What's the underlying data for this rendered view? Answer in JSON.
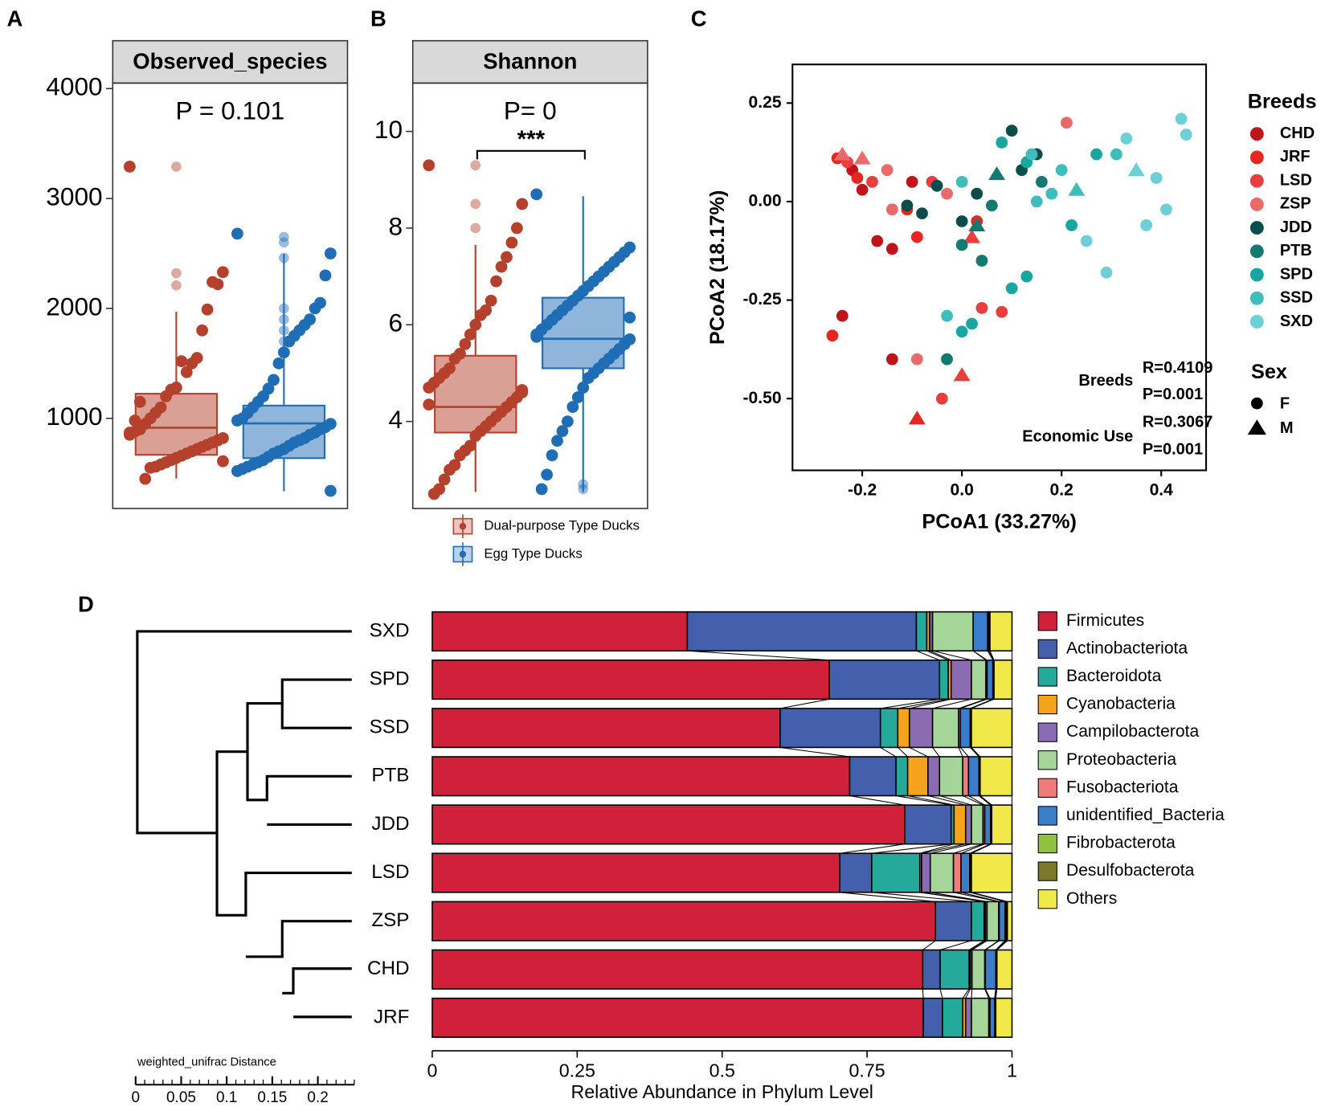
{
  "panels": [
    "A",
    "B",
    "C",
    "D"
  ],
  "chart_data": [
    {
      "type": "box",
      "title": "Observed_species",
      "annotation": "P = 0.101",
      "ylim": [
        180,
        4050
      ],
      "yticks": [
        1000,
        2000,
        3000,
        4000
      ],
      "series": [
        {
          "color": "#b5412c",
          "box": {
            "min": 453,
            "q1": 668,
            "median": 915,
            "q3": 1224,
            "max": 1971
          },
          "outliers": [
            3290,
            2320,
            2210
          ],
          "values": [
            3290,
            2330,
            2220,
            2240,
            1990,
            1800,
            1550,
            1500,
            1420,
            1520,
            1280,
            1260,
            1200,
            1100,
            1050,
            1000,
            950,
            900,
            880,
            850,
            820,
            800,
            780,
            760,
            740,
            720,
            700,
            680,
            660,
            640,
            620,
            600,
            580,
            560,
            550,
            450,
            1150,
            980,
            870,
            610
          ]
        },
        {
          "color": "#1f6db5",
          "box": {
            "min": 337,
            "q1": 638,
            "median": 954,
            "q3": 1116,
            "max": 2496
          },
          "outliers": [
            2650,
            2600,
            2460,
            2000,
            1900,
            1800,
            1700
          ],
          "values": [
            2680,
            2500,
            2300,
            2050,
            2000,
            1900,
            1850,
            1800,
            1750,
            1700,
            1600,
            1500,
            1350,
            1270,
            1200,
            1150,
            1100,
            1050,
            1000,
            980,
            950,
            920,
            900,
            870,
            850,
            820,
            800,
            780,
            750,
            720,
            700,
            680,
            650,
            620,
            600,
            580,
            560,
            540,
            520,
            340
          ]
        }
      ]
    },
    {
      "type": "box",
      "title": "Shannon",
      "annotation": "P= 0",
      "significance": "***",
      "ylim": [
        2.2,
        11.0
      ],
      "yticks": [
        4,
        6,
        8,
        10
      ],
      "series": [
        {
          "name": "Dual-purpose Type Ducks",
          "color": "#b5412c",
          "box": {
            "min": 2.54,
            "q1": 3.77,
            "median": 4.3,
            "q3": 5.36,
            "max": 7.65
          },
          "outliers": [
            9.3,
            8.5,
            8.0
          ],
          "values": [
            9.3,
            8.5,
            8.0,
            7.7,
            7.4,
            7.2,
            6.9,
            6.5,
            6.3,
            6.2,
            6.0,
            5.8,
            5.6,
            5.4,
            5.3,
            5.1,
            5.0,
            4.9,
            4.8,
            4.7,
            4.6,
            4.5,
            4.4,
            4.3,
            4.2,
            4.1,
            4.0,
            3.9,
            3.8,
            3.7,
            3.5,
            3.4,
            3.3,
            3.1,
            3.0,
            2.8,
            2.6,
            2.5,
            4.35,
            4.65
          ]
        },
        {
          "name": "Egg Type Ducks",
          "color": "#1f6db5",
          "box": {
            "min": 2.54,
            "q1": 5.1,
            "median": 5.71,
            "q3": 6.56,
            "max": 8.66
          },
          "outliers": [
            2.6,
            2.7
          ],
          "values": [
            8.7,
            7.6,
            7.5,
            7.4,
            7.3,
            7.2,
            7.1,
            7.0,
            6.9,
            6.8,
            6.7,
            6.6,
            6.5,
            6.4,
            6.3,
            6.2,
            6.1,
            6.0,
            5.9,
            5.8,
            5.7,
            5.6,
            5.5,
            5.4,
            5.3,
            5.2,
            5.1,
            5.0,
            4.9,
            4.7,
            4.5,
            4.3,
            4.0,
            3.8,
            3.6,
            3.3,
            2.9,
            2.6,
            5.75,
            6.15
          ]
        }
      ]
    },
    {
      "type": "scatter",
      "xlabel": "PCoA1 (33.27%)",
      "ylabel": "PCoA2 (18.17%)",
      "xlim": [
        -0.34,
        0.49
      ],
      "ylim": [
        -0.682,
        0.348
      ],
      "xticks": [
        -0.2,
        {
          "value": 0,
          "label": "0.0"
        },
        0.2,
        0.4
      ],
      "yticks": [
        0.25,
        {
          "value": 0,
          "label": "0.00"
        },
        -0.25,
        {
          "value": -0.5,
          "label": "-0.50"
        }
      ],
      "legend_title": "Breeds",
      "sex_title": "Sex",
      "sex_labels": [
        "F",
        "M"
      ],
      "annotations": [
        "Breeds",
        "R=0.4109",
        "P=0.001",
        "Economic Use",
        "R=0.3067",
        "P=0.001"
      ],
      "series": [
        {
          "name": "CHD",
          "color": "#c0141a",
          "x": [
            -0.22,
            -0.17,
            -0.14,
            -0.24,
            -0.14,
            -0.2,
            -0.1
          ],
          "y": [
            0.08,
            -0.1,
            -0.12,
            -0.29,
            -0.4,
            0.03,
            0.05
          ],
          "sex": [
            "F",
            "F",
            "F",
            "F",
            "F",
            "F",
            "F"
          ]
        },
        {
          "name": "JRF",
          "color": "#e8251f",
          "x": [
            -0.25,
            -0.21,
            -0.11,
            -0.09,
            -0.26,
            -0.09,
            0.03
          ],
          "y": [
            0.11,
            0.06,
            -0.02,
            -0.09,
            -0.34,
            -0.55,
            -0.05
          ],
          "sex": [
            "F",
            "F",
            "F",
            "F",
            "F",
            "M",
            "F"
          ]
        },
        {
          "name": "LSD",
          "color": "#e83e3e",
          "x": [
            -0.23,
            -0.18,
            -0.06,
            0.02,
            0.0,
            -0.04,
            0.08,
            0.04
          ],
          "y": [
            0.1,
            0.05,
            0.05,
            -0.09,
            -0.44,
            -0.5,
            -0.28,
            -0.27
          ],
          "sex": [
            "F",
            "F",
            "F",
            "M",
            "M",
            "F",
            "F",
            "F"
          ]
        },
        {
          "name": "ZSP",
          "color": "#ea6a6a",
          "x": [
            -0.24,
            -0.2,
            -0.15,
            -0.14,
            0.21,
            -0.09,
            -0.03
          ],
          "y": [
            0.12,
            0.11,
            0.08,
            -0.02,
            0.2,
            -0.4,
            0.02
          ],
          "sex": [
            "M",
            "M",
            "F",
            "F",
            "F",
            "F",
            "F"
          ]
        },
        {
          "name": "JDD",
          "color": "#0b4d4a",
          "x": [
            -0.11,
            -0.05,
            0.0,
            0.03,
            0.12,
            0.15,
            0.1,
            -0.08
          ],
          "y": [
            -0.01,
            0.04,
            -0.05,
            0.02,
            0.08,
            0.12,
            0.18,
            -0.03
          ],
          "sex": [
            "F",
            "F",
            "F",
            "F",
            "F",
            "F",
            "F",
            "F"
          ]
        },
        {
          "name": "PTB",
          "color": "#137a72",
          "x": [
            0.0,
            0.04,
            0.06,
            0.03,
            0.07,
            0.16,
            -0.03
          ],
          "y": [
            -0.11,
            -0.15,
            -0.01,
            -0.06,
            0.07,
            0.05,
            -0.4
          ],
          "sex": [
            "F",
            "F",
            "F",
            "M",
            "M",
            "F",
            "F"
          ]
        },
        {
          "name": "SPD",
          "color": "#1aa6a0",
          "x": [
            0.08,
            0.13,
            0.22,
            0.27,
            0.0,
            0.02,
            0.13,
            0.1
          ],
          "y": [
            0.15,
            0.1,
            -0.06,
            0.12,
            -0.33,
            -0.31,
            -0.19,
            -0.22
          ],
          "sex": [
            "F",
            "F",
            "F",
            "F",
            "F",
            "F",
            "F",
            "F"
          ]
        },
        {
          "name": "SSD",
          "color": "#3fbcbc",
          "x": [
            0.14,
            0.2,
            0.23,
            0.15,
            0.0,
            -0.03,
            0.31,
            0.18
          ],
          "y": [
            0.12,
            0.08,
            0.03,
            0.0,
            0.05,
            -0.29,
            0.12,
            0.02
          ],
          "sex": [
            "F",
            "F",
            "M",
            "F",
            "F",
            "F",
            "F",
            "F"
          ]
        },
        {
          "name": "SXD",
          "color": "#6dd0d6",
          "x": [
            0.33,
            0.45,
            0.44,
            0.35,
            0.41,
            0.39,
            0.29,
            0.25,
            0.37
          ],
          "y": [
            0.16,
            0.17,
            0.21,
            0.08,
            -0.02,
            0.06,
            -0.18,
            -0.1,
            -0.06
          ],
          "sex": [
            "F",
            "F",
            "F",
            "M",
            "F",
            "F",
            "F",
            "F",
            "F"
          ]
        }
      ]
    },
    {
      "type": "bar",
      "orientation": "horizontal",
      "stacked": true,
      "xlabel": "Relative Abundance in Phylum Level",
      "categories": [
        "SXD",
        "SPD",
        "SSD",
        "PTB",
        "JDD",
        "LSD",
        "ZSP",
        "CHD",
        "JRF"
      ],
      "xlim": [
        0,
        1
      ],
      "xticks": [
        0,
        0.25,
        0.5,
        0.75,
        1
      ],
      "scale": {
        "label": "weighted_unifrac Distance",
        "xlim": [
          0,
          0.24
        ],
        "xticks": [
          0,
          0.05,
          0.1,
          0.15,
          0.2
        ]
      },
      "series": [
        {
          "name": "Firmicutes",
          "color": "#d0203a",
          "values": [
            0.44,
            0.685,
            0.6,
            0.72,
            0.815,
            0.703,
            0.868,
            0.846,
            0.847
          ]
        },
        {
          "name": "Actinobacteriota",
          "color": "#4460ad",
          "values": [
            0.395,
            0.19,
            0.173,
            0.08,
            0.08,
            0.055,
            0.062,
            0.03,
            0.033
          ]
        },
        {
          "name": "Bacteroidota",
          "color": "#25a99a",
          "values": [
            0.018,
            0.015,
            0.03,
            0.02,
            0.005,
            0.083,
            0.022,
            0.05,
            0.035
          ]
        },
        {
          "name": "Cyanobacteria",
          "color": "#f5a21d",
          "values": [
            0.005,
            0.005,
            0.02,
            0.035,
            0.02,
            0.003,
            0.002,
            0.002,
            0.005
          ]
        },
        {
          "name": "Campilobacterota",
          "color": "#8b6bb1",
          "values": [
            0.005,
            0.035,
            0.04,
            0.02,
            0.01,
            0.015,
            0.003,
            0.003,
            0.01
          ]
        },
        {
          "name": "Proteobacteria",
          "color": "#a6d59a",
          "values": [
            0.07,
            0.025,
            0.045,
            0.04,
            0.02,
            0.04,
            0.02,
            0.022,
            0.03
          ]
        },
        {
          "name": "Fusobacteriota",
          "color": "#ef7b7b",
          "values": [
            0.0,
            0.002,
            0.003,
            0.01,
            0.003,
            0.013,
            0.001,
            0.001,
            0.002
          ]
        },
        {
          "name": "unidentified_Bacteria",
          "color": "#3b7dc8",
          "values": [
            0.025,
            0.01,
            0.017,
            0.018,
            0.01,
            0.015,
            0.01,
            0.018,
            0.008
          ]
        },
        {
          "name": "Fibrobacterota",
          "color": "#8fc33d",
          "values": [
            0.002,
            0.001,
            0.001,
            0.001,
            0.001,
            0.001,
            0.002,
            0.001,
            0.001
          ]
        },
        {
          "name": "Desulfobacterota",
          "color": "#7c7a2a",
          "values": [
            0.002,
            0.001,
            0.001,
            0.001,
            0.001,
            0.002,
            0.002,
            0.001,
            0.001
          ]
        },
        {
          "name": "Others",
          "color": "#f1e94a",
          "values": [
            0.038,
            0.031,
            0.07,
            0.055,
            0.035,
            0.07,
            0.008,
            0.026,
            0.028
          ]
        }
      ]
    }
  ]
}
